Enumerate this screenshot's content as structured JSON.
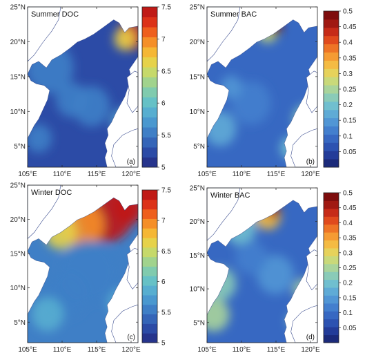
{
  "figure": {
    "lat_ticks": [
      "25°N",
      "20°N",
      "15°N",
      "10°N",
      "5°N"
    ],
    "lon_ticks": [
      "105°E",
      "110°E",
      "115°E",
      "120°E"
    ]
  },
  "colorbars": {
    "doc": {
      "ticks": [
        "7.5",
        "7",
        "6.5",
        "6",
        "5.5",
        "5"
      ],
      "range": [
        5,
        7.5
      ],
      "colors": [
        "#26348c",
        "#2c4ba6",
        "#3565b8",
        "#3f7fc6",
        "#4a98cf",
        "#57aed0",
        "#66c1c6",
        "#80cbae",
        "#a1d38d",
        "#c6d96a",
        "#e6d24a",
        "#f5b735",
        "#f58f28",
        "#ee5f1d",
        "#dc3218",
        "#c01a16"
      ]
    },
    "bac": {
      "ticks": [
        "0.5",
        "0.45",
        "0.4",
        "0.35",
        "0.3",
        "0.25",
        "0.2",
        "0.15",
        "0.1",
        "0.05"
      ],
      "range": [
        0,
        0.5
      ],
      "colors": [
        "#1b2a7a",
        "#233c99",
        "#2c52b1",
        "#3768c2",
        "#437fce",
        "#5196d5",
        "#5fabd6",
        "#70bfcf",
        "#8acbb8",
        "#a9d49b",
        "#c9d97a",
        "#e6d25b",
        "#f4bb43",
        "#f59b33",
        "#ee7426",
        "#e04a1d",
        "#c62b18",
        "#a01912",
        "#7e0d0d"
      ]
    }
  },
  "panels": [
    {
      "title": "Summer DOC",
      "label": "(a)",
      "cbar": "doc"
    },
    {
      "title": "Summer BAC",
      "label": "(b)",
      "cbar": "bac"
    },
    {
      "title": "Winter DOC",
      "label": "(c)",
      "cbar": "doc"
    },
    {
      "title": "Winter BAC",
      "label": "(d)",
      "cbar": "bac"
    }
  ],
  "colors": {
    "land": "#ffffff",
    "frame": "#222222"
  }
}
